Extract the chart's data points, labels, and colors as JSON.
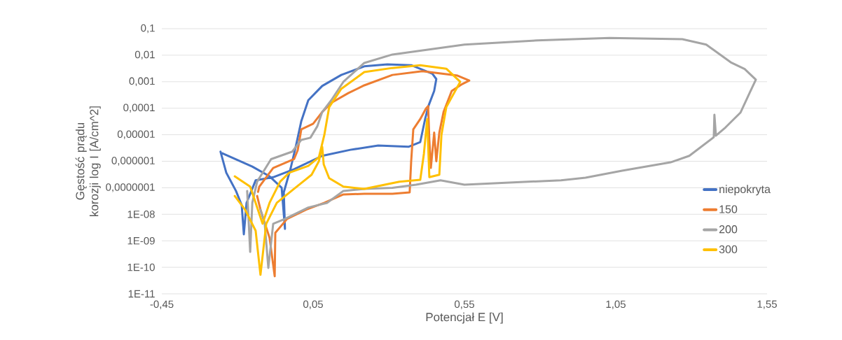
{
  "chart_data": {
    "type": "line",
    "xlabel": "Potencjał E [V]",
    "ylabel": "Gęstość prądu korozji log I [A/cm^2]",
    "log": "y",
    "grid": "y",
    "legend": "right",
    "xlim": [
      -0.45,
      1.55
    ],
    "xticks": [
      {
        "value": -0.45,
        "label": "-0,45"
      },
      {
        "value": 0.05,
        "label": "0,05"
      },
      {
        "value": 0.55,
        "label": "0,55"
      },
      {
        "value": 1.05,
        "label": "1,05"
      },
      {
        "value": 1.55,
        "label": "1,55"
      }
    ],
    "ylim": [
      1e-11,
      0.1
    ],
    "yticks": [
      {
        "value": 0.1,
        "label": "0,1"
      },
      {
        "value": 0.01,
        "label": "0,01"
      },
      {
        "value": 0.001,
        "label": "0,001"
      },
      {
        "value": 0.0001,
        "label": "0,0001"
      },
      {
        "value": 1e-05,
        "label": "0,00001"
      },
      {
        "value": 1e-06,
        "label": "0,000001"
      },
      {
        "value": 1e-07,
        "label": "0,0000001"
      },
      {
        "value": 1e-08,
        "label": "1E-08"
      },
      {
        "value": 1e-09,
        "label": "1E-09"
      },
      {
        "value": 1e-10,
        "label": "1E-10"
      },
      {
        "value": 1e-11,
        "label": "1E-11"
      }
    ],
    "series": [
      {
        "name": "niepokryta",
        "color": "#4472c4",
        "x": [
          -0.256,
          -0.237,
          -0.205,
          -0.186,
          -0.179,
          -0.17,
          -0.14,
          -0.082,
          -0.013,
          0.08,
          0.173,
          0.265,
          0.365,
          0.404,
          0.42,
          0.432,
          0.45,
          0.457,
          0.444,
          0.374,
          0.295,
          0.219,
          0.143,
          0.08,
          0.034,
          0.011,
          -0.006,
          -0.024,
          -0.047,
          -0.043,
          -0.054,
          -0.094,
          -0.151,
          -0.25
        ],
        "values": [
          2.3e-06,
          3.7e-07,
          7.6e-08,
          2.2e-08,
          1.75e-09,
          2.7e-08,
          1.9e-07,
          2.5e-07,
          5e-07,
          1.6e-06,
          2.7e-06,
          3.9e-06,
          3.5e-06,
          5.3e-06,
          3.9e-05,
          0.00013,
          0.00045,
          0.00126,
          0.002,
          0.0042,
          0.0045,
          0.0038,
          0.0018,
          0.00069,
          0.0002,
          3.3e-05,
          4.2e-06,
          5.6e-07,
          6.7e-08,
          2.8e-09,
          1e-07,
          2.7e-07,
          6.3e-07,
          2e-06
        ]
      },
      {
        "name": "150",
        "color": "#ed7d31",
        "x": [
          -0.135,
          -0.124,
          -0.094,
          -0.077,
          -0.075,
          -0.036,
          0.027,
          0.087,
          0.15,
          0.219,
          0.312,
          0.369,
          0.374,
          0.381,
          0.404,
          0.423,
          0.43,
          0.434,
          0.439,
          0.45,
          0.457,
          0.467,
          0.481,
          0.508,
          0.543,
          0.566,
          0.527,
          0.411,
          0.312,
          0.219,
          0.166,
          0.11,
          0.08,
          0.05,
          0.011,
          -0.001,
          -0.013,
          -0.082,
          -0.128,
          -0.132
        ],
        "values": [
          4.9e-08,
          1.5e-08,
          1.3e-09,
          4.6e-11,
          2e-09,
          6.7e-09,
          1.5e-08,
          2.7e-08,
          5.6e-08,
          5.9e-08,
          5.9e-08,
          6.7e-08,
          1e-06,
          1.6e-05,
          3.9e-05,
          9.8e-05,
          0.00012,
          6.4e-06,
          5.6e-07,
          1.2e-05,
          1e-06,
          1.2e-05,
          7.2e-05,
          0.00045,
          0.00082,
          0.0011,
          0.0017,
          0.0025,
          0.0018,
          0.00073,
          0.00037,
          0.00016,
          7.2e-05,
          2.6e-05,
          1.6e-05,
          2.6e-06,
          1.2e-06,
          5.6e-07,
          1.1e-07,
          7e-08
        ]
      },
      {
        "name": "200",
        "color": "#a5a5a5",
        "x": [
          -0.168,
          -0.158,
          -0.151,
          -0.135,
          -0.089,
          -0.019,
          0.011,
          0.041,
          0.064,
          0.08,
          0.11,
          0.15,
          0.219,
          0.312,
          0.55,
          0.791,
          1.029,
          1.27,
          1.349,
          1.43,
          1.476,
          1.513,
          1.492,
          1.462,
          1.413,
          1.381,
          1.376,
          1.374,
          1.293,
          1.231,
          1.071,
          0.95,
          0.869,
          0.71,
          0.55,
          0.471,
          0.39,
          0.312,
          0.219,
          0.15,
          0.096,
          0.034,
          -0.043,
          -0.082,
          -0.098,
          -0.11,
          -0.124
        ],
        "values": [
          7.6e-08,
          3.8e-10,
          2.7e-08,
          1.7e-07,
          1.2e-06,
          2.3e-06,
          6.4e-06,
          7.7e-06,
          2.1e-05,
          7.2e-05,
          0.0002,
          0.00099,
          0.0051,
          0.0106,
          0.025,
          0.036,
          0.045,
          0.04,
          0.025,
          0.0054,
          0.003,
          0.0012,
          0.00037,
          6.8e-05,
          1.9e-05,
          9.2e-06,
          5.7e-05,
          8.1e-06,
          1.6e-06,
          9.1e-07,
          4.4e-07,
          2.4e-07,
          1.9e-07,
          1.6e-07,
          1.3e-07,
          1.9e-07,
          1.3e-07,
          1e-07,
          9.1e-08,
          7.6e-08,
          2.7e-08,
          1.8e-08,
          6.7e-09,
          4.4e-09,
          9.5e-11,
          4.4e-09,
          1.5e-08
        ]
      },
      {
        "name": "300",
        "color": "#ffc000",
        "x": [
          -0.209,
          -0.175,
          -0.14,
          -0.124,
          -0.105,
          -0.07,
          -0.013,
          0.045,
          0.069,
          0.08,
          0.085,
          0.103,
          0.15,
          0.219,
          0.335,
          0.404,
          0.416,
          0.427,
          0.434,
          0.467,
          0.474,
          0.49,
          0.536,
          0.49,
          0.404,
          0.312,
          0.219,
          0.143,
          0.103,
          0.087,
          0.069,
          0.034,
          -0.029,
          -0.059,
          -0.094,
          -0.117,
          -0.158,
          -0.209
        ],
        "values": [
          4.9e-08,
          1.5e-08,
          2.4e-09,
          5.2e-11,
          4.4e-09,
          2.7e-08,
          9.1e-08,
          3.1e-07,
          1e-06,
          3.5e-06,
          7.6e-07,
          2.3e-07,
          1.1e-07,
          9.1e-08,
          1.7e-07,
          2e-07,
          1.9e-06,
          3.9e-05,
          2.5e-07,
          3.1e-07,
          9.8e-06,
          0.00011,
          0.00099,
          0.0031,
          0.0042,
          0.0033,
          0.0023,
          0.00054,
          0.00011,
          9.8e-06,
          1.4e-06,
          6.7e-07,
          3.7e-07,
          1.7e-07,
          2.7e-08,
          4.4e-09,
          1.1e-07,
          2.7e-07
        ]
      }
    ]
  }
}
